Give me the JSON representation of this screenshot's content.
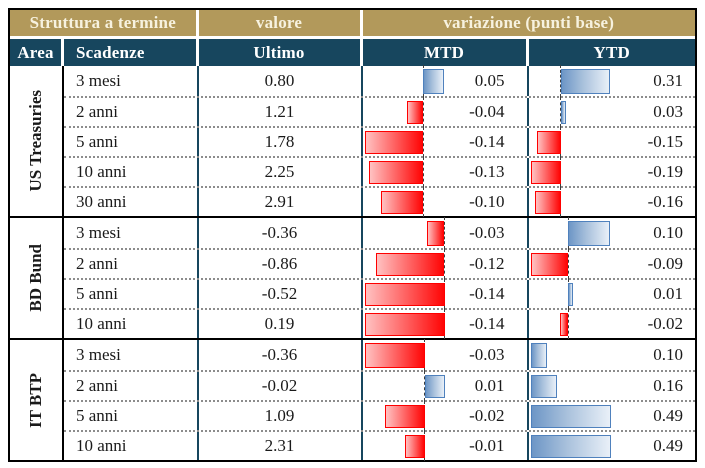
{
  "table": {
    "header_groups": {
      "struttura": "Struttura a termine",
      "valore": "valore",
      "variazione": "variazione (punti base)"
    },
    "columns": {
      "area": "Area",
      "scadenze": "Scadenze",
      "ultimo": "Ultimo",
      "mtd": "MTD",
      "ytd": "YTD"
    }
  },
  "colors": {
    "header_gold": "#b2995b",
    "header_navy": "#17465e",
    "grid_teal": "#17465e",
    "positive_bar_border": "#4f81bd",
    "positive_bar_fill": "#6d96c6",
    "negative_bar_border": "#fe0000",
    "negative_bar_fill": "#ff0505",
    "header_gold_text": "#f7f2df",
    "header_navy_text": "#ffffff"
  },
  "chart_data": {
    "type": "table",
    "title": "Struttura a termine",
    "columns": [
      "Area",
      "Scadenze",
      "Ultimo",
      "MTD",
      "YTD"
    ],
    "bar_columns": [
      "MTD",
      "YTD"
    ],
    "bar_style": "data-bars: blue gradient = positive, red gradient = negative, dashed zero axis, scaled per section",
    "sections": [
      {
        "area": "US Treasuries",
        "rows": [
          {
            "scadenza": "3 mesi",
            "ultimo": 0.8,
            "mtd": 0.05,
            "ytd": 0.31
          },
          {
            "scadenza": "2 anni",
            "ultimo": 1.21,
            "mtd": -0.04,
            "ytd": 0.03
          },
          {
            "scadenza": "5 anni",
            "ultimo": 1.78,
            "mtd": -0.14,
            "ytd": -0.15
          },
          {
            "scadenza": "10 anni",
            "ultimo": 2.25,
            "mtd": -0.13,
            "ytd": -0.19
          },
          {
            "scadenza": "30 anni",
            "ultimo": 2.91,
            "mtd": -0.1,
            "ytd": -0.16
          }
        ]
      },
      {
        "area": "BD Bund",
        "rows": [
          {
            "scadenza": "3 mesi",
            "ultimo": -0.36,
            "mtd": -0.03,
            "ytd": 0.1
          },
          {
            "scadenza": "2 anni",
            "ultimo": -0.86,
            "mtd": -0.12,
            "ytd": -0.09
          },
          {
            "scadenza": "5 anni",
            "ultimo": -0.52,
            "mtd": -0.14,
            "ytd": 0.01
          },
          {
            "scadenza": "10 anni",
            "ultimo": 0.19,
            "mtd": -0.14,
            "ytd": -0.02
          }
        ]
      },
      {
        "area": "IT BTP",
        "rows": [
          {
            "scadenza": "3 mesi",
            "ultimo": -0.36,
            "mtd": -0.03,
            "ytd": 0.1
          },
          {
            "scadenza": "2 anni",
            "ultimo": -0.02,
            "mtd": 0.01,
            "ytd": 0.16
          },
          {
            "scadenza": "5 anni",
            "ultimo": 1.09,
            "mtd": -0.02,
            "ytd": 0.49
          },
          {
            "scadenza": "10 anni",
            "ultimo": 2.31,
            "mtd": -0.01,
            "ytd": 0.49
          }
        ]
      }
    ]
  }
}
